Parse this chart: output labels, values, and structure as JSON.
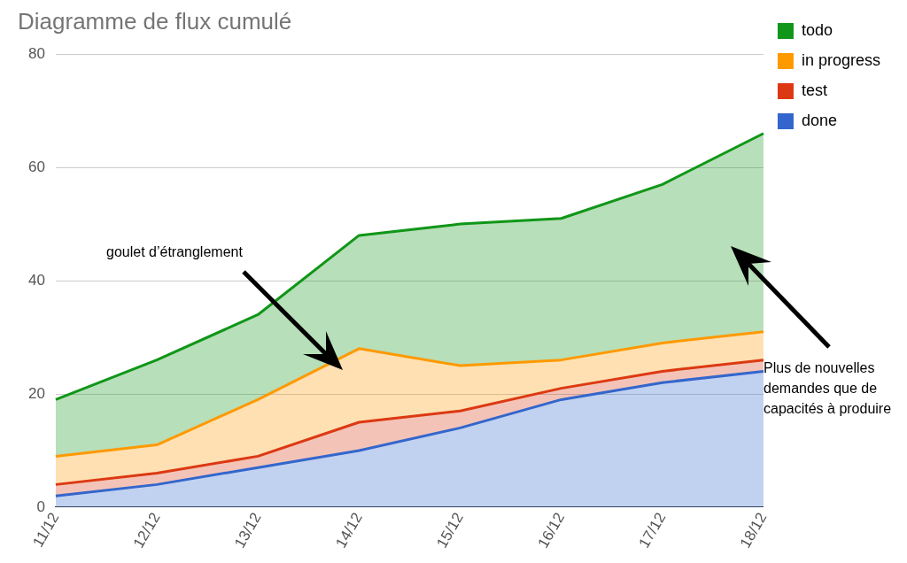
{
  "chart_data": {
    "type": "area",
    "title": "Diagramme de flux cumulé",
    "categories": [
      "11/12",
      "12/12",
      "13/12",
      "14/12",
      "15/12",
      "16/12",
      "17/12",
      "18/12"
    ],
    "stacked": true,
    "series": [
      {
        "name": "done",
        "color": "#3366cc",
        "values": [
          2,
          4,
          7,
          10,
          14,
          19,
          22,
          24
        ]
      },
      {
        "name": "test",
        "color": "#dc3912",
        "values": [
          2,
          2,
          2,
          5,
          3,
          2,
          2,
          2
        ]
      },
      {
        "name": "in progress",
        "color": "#ff9900",
        "values": [
          5,
          5,
          10,
          13,
          8,
          5,
          5,
          5
        ]
      },
      {
        "name": "todo",
        "color": "#109618",
        "values": [
          10,
          15,
          15,
          20,
          25,
          25,
          28,
          35
        ]
      }
    ],
    "ylim": [
      0,
      80
    ],
    "yticks": [
      0,
      20,
      40,
      60,
      80
    ],
    "grid": "y",
    "legend": "top right",
    "marker": "none",
    "annotations": [
      "goulet d’étranglement",
      "Plus de nouvelles demandes que de capacités à produire"
    ]
  }
}
